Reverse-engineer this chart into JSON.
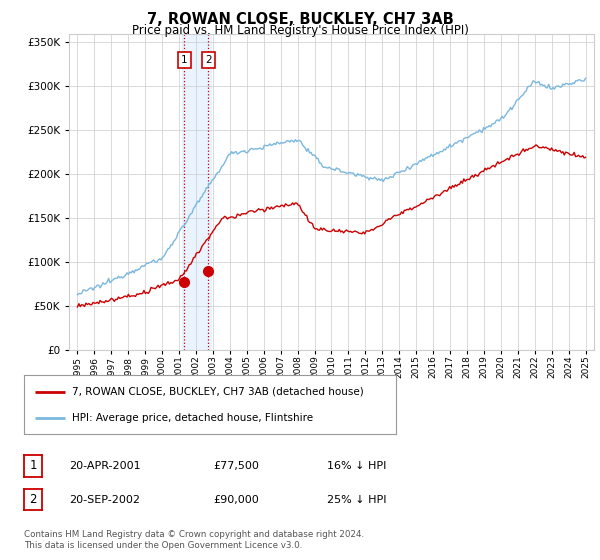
{
  "title": "7, ROWAN CLOSE, BUCKLEY, CH7 3AB",
  "subtitle": "Price paid vs. HM Land Registry's House Price Index (HPI)",
  "footer1": "Contains HM Land Registry data © Crown copyright and database right 2024.",
  "footer2": "This data is licensed under the Open Government Licence v3.0.",
  "legend_label_red": "7, ROWAN CLOSE, BUCKLEY, CH7 3AB (detached house)",
  "legend_label_blue": "HPI: Average price, detached house, Flintshire",
  "transaction1_date": "20-APR-2001",
  "transaction1_price": "£77,500",
  "transaction1_hpi": "16% ↓ HPI",
  "transaction2_date": "20-SEP-2002",
  "transaction2_price": "£90,000",
  "transaction2_hpi": "25% ↓ HPI",
  "transaction1_x": 2001.3,
  "transaction1_y": 77500,
  "transaction2_x": 2002.72,
  "transaction2_y": 90000,
  "hpi_color": "#7ab8e0",
  "price_color": "#cc0000",
  "background_color": "#ffffff",
  "grid_color": "#cccccc",
  "shading_color": "#ddeeff",
  "ylim_min": 0,
  "ylim_max": 360000,
  "xlim_min": 1994.5,
  "xlim_max": 2025.5,
  "yticks": [
    0,
    50000,
    100000,
    150000,
    200000,
    250000,
    300000,
    350000
  ],
  "xticks": [
    1995,
    1996,
    1997,
    1998,
    1999,
    2000,
    2001,
    2002,
    2003,
    2004,
    2005,
    2006,
    2007,
    2008,
    2009,
    2010,
    2011,
    2012,
    2013,
    2014,
    2015,
    2016,
    2017,
    2018,
    2019,
    2020,
    2021,
    2022,
    2023,
    2024,
    2025
  ]
}
